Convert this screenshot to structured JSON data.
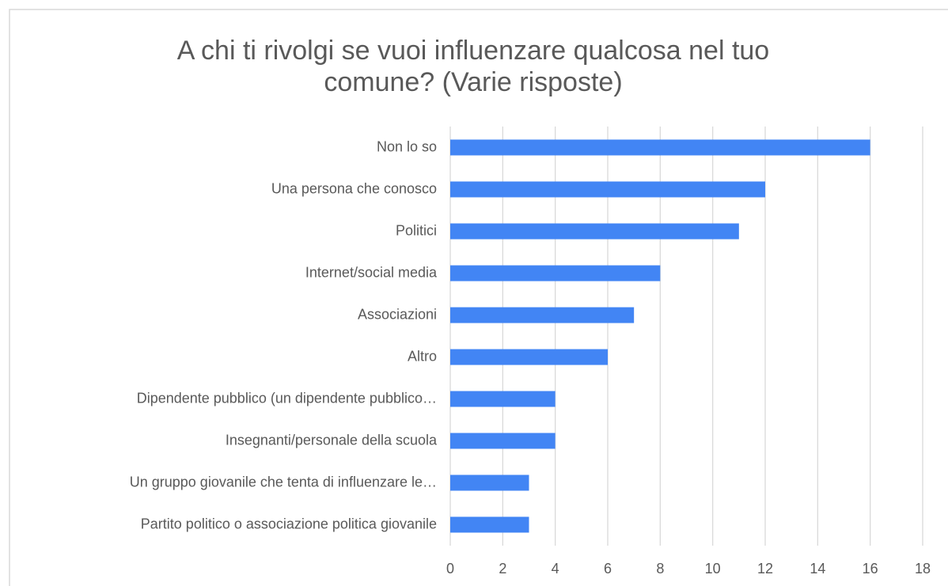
{
  "chart_data": {
    "type": "bar",
    "orientation": "horizontal",
    "title": [
      "A chi ti rivolgi se vuoi influenzare qualcosa nel tuo",
      "comune? (Varie risposte)"
    ],
    "categories": [
      "Non lo so",
      "Una persona che conosco",
      "Politici",
      "Internet/social media",
      "Associazioni",
      "Altro",
      "Dipendente pubblico (un dipendente pubblico…",
      "Insegnanti/personale della scuola",
      "Un gruppo giovanile che tenta di influenzare le…",
      "Partito politico o associazione politica giovanile"
    ],
    "values": [
      16,
      12,
      11,
      8,
      7,
      6,
      4,
      4,
      3,
      3
    ],
    "color": "#4285f4",
    "xlim": [
      0,
      18
    ],
    "xticks": [
      0,
      2,
      4,
      6,
      8,
      10,
      12,
      14,
      16,
      18
    ],
    "grid": true
  }
}
